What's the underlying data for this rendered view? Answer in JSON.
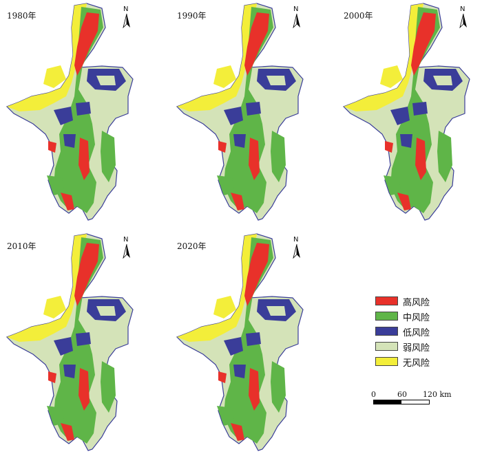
{
  "panels": [
    {
      "year": "1980年",
      "north": "N"
    },
    {
      "year": "1990年",
      "north": "N"
    },
    {
      "year": "2000年",
      "north": "N"
    },
    {
      "year": "2010年",
      "north": "N"
    },
    {
      "year": "2020年",
      "north": "N"
    }
  ],
  "legend": {
    "items": [
      {
        "label": "高风险",
        "color": "#e8312a"
      },
      {
        "label": "中风险",
        "color": "#5fb548"
      },
      {
        "label": "低风险",
        "color": "#3a3d99"
      },
      {
        "label": "弱风险",
        "color": "#d4e3b8"
      },
      {
        "label": "无风险",
        "color": "#f3ee3a"
      }
    ]
  },
  "scale": {
    "zero": "0",
    "mid": "60",
    "end": "120 km"
  }
}
